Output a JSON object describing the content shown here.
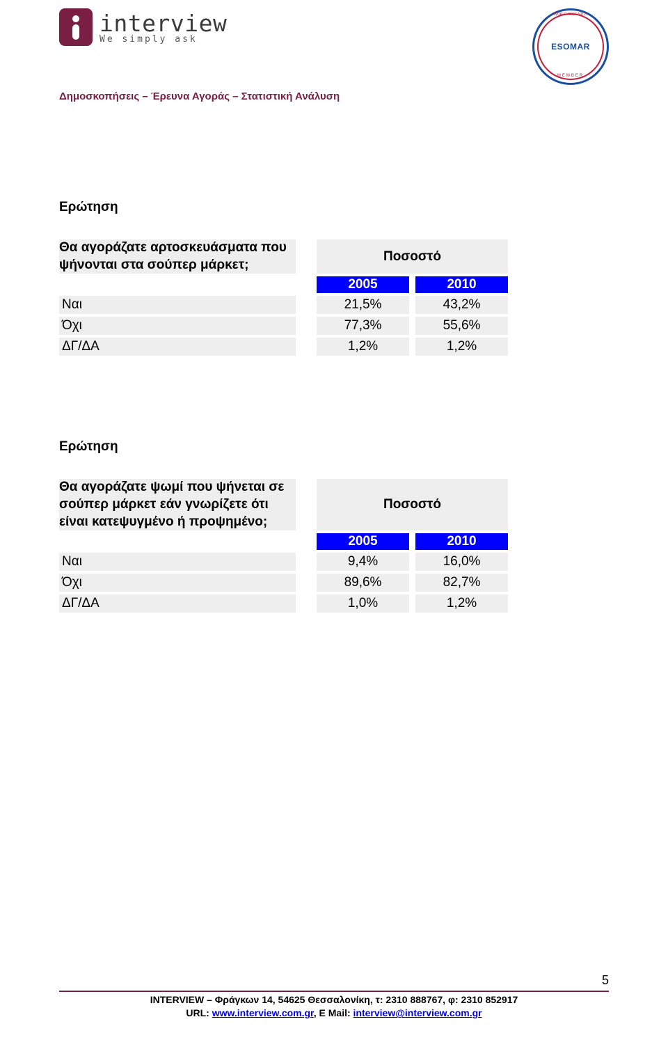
{
  "header": {
    "logo_title": "interview",
    "logo_subtitle": "We simply ask",
    "tagline": "Δημοσκοπήσεις – Έρευνα Αγοράς – Στατιστική Ανάλυση",
    "badge_main": "ESOMAR",
    "badge_top": "WORLD RESEARCH",
    "badge_member": "MEMBER"
  },
  "section1": {
    "title": "Ερώτηση",
    "question": "Θα αγοράζατε αρτοσκευάσματα που ψήνονται στα σούπερ μάρκετ;",
    "percent_label": "Ποσοστό",
    "years": [
      "2005",
      "2010"
    ],
    "rows": [
      {
        "label": "Ναι",
        "vals": [
          "21,5%",
          "43,2%"
        ]
      },
      {
        "label": "Όχι",
        "vals": [
          "77,3%",
          "55,6%"
        ]
      },
      {
        "label": "ΔΓ/ΔΑ",
        "vals": [
          "1,2%",
          "1,2%"
        ]
      }
    ]
  },
  "section2": {
    "title": "Ερώτηση",
    "question": "Θα αγοράζατε ψωμί που ψήνεται σε σούπερ μάρκετ εάν γνωρίζετε ότι είναι κατεψυγμένο ή προψημένο;",
    "percent_label": "Ποσοστό",
    "years": [
      "2005",
      "2010"
    ],
    "rows": [
      {
        "label": "Ναι",
        "vals": [
          "9,4%",
          "16,0%"
        ]
      },
      {
        "label": "Όχι",
        "vals": [
          "89,6%",
          "82,7%"
        ]
      },
      {
        "label": "ΔΓ/ΔΑ",
        "vals": [
          "1,0%",
          "1,2%"
        ]
      }
    ]
  },
  "footer": {
    "page_num": "5",
    "line1_pre": "INTERVIEW",
    "line1_rest": " – Φράγκων 14, 54625 Θεσσαλονίκη, τ: 2310 888767, φ: 2310 852917",
    "line2_pre": "URL: ",
    "line2_url": "www.interview.com.gr",
    "line2_mid": ", E Mail: ",
    "line2_mail": "interview@interview.com.gr"
  },
  "colors": {
    "brand": "#7a1f44",
    "year_bg": "#0000ff",
    "cell_bg": "#eeeeee"
  }
}
